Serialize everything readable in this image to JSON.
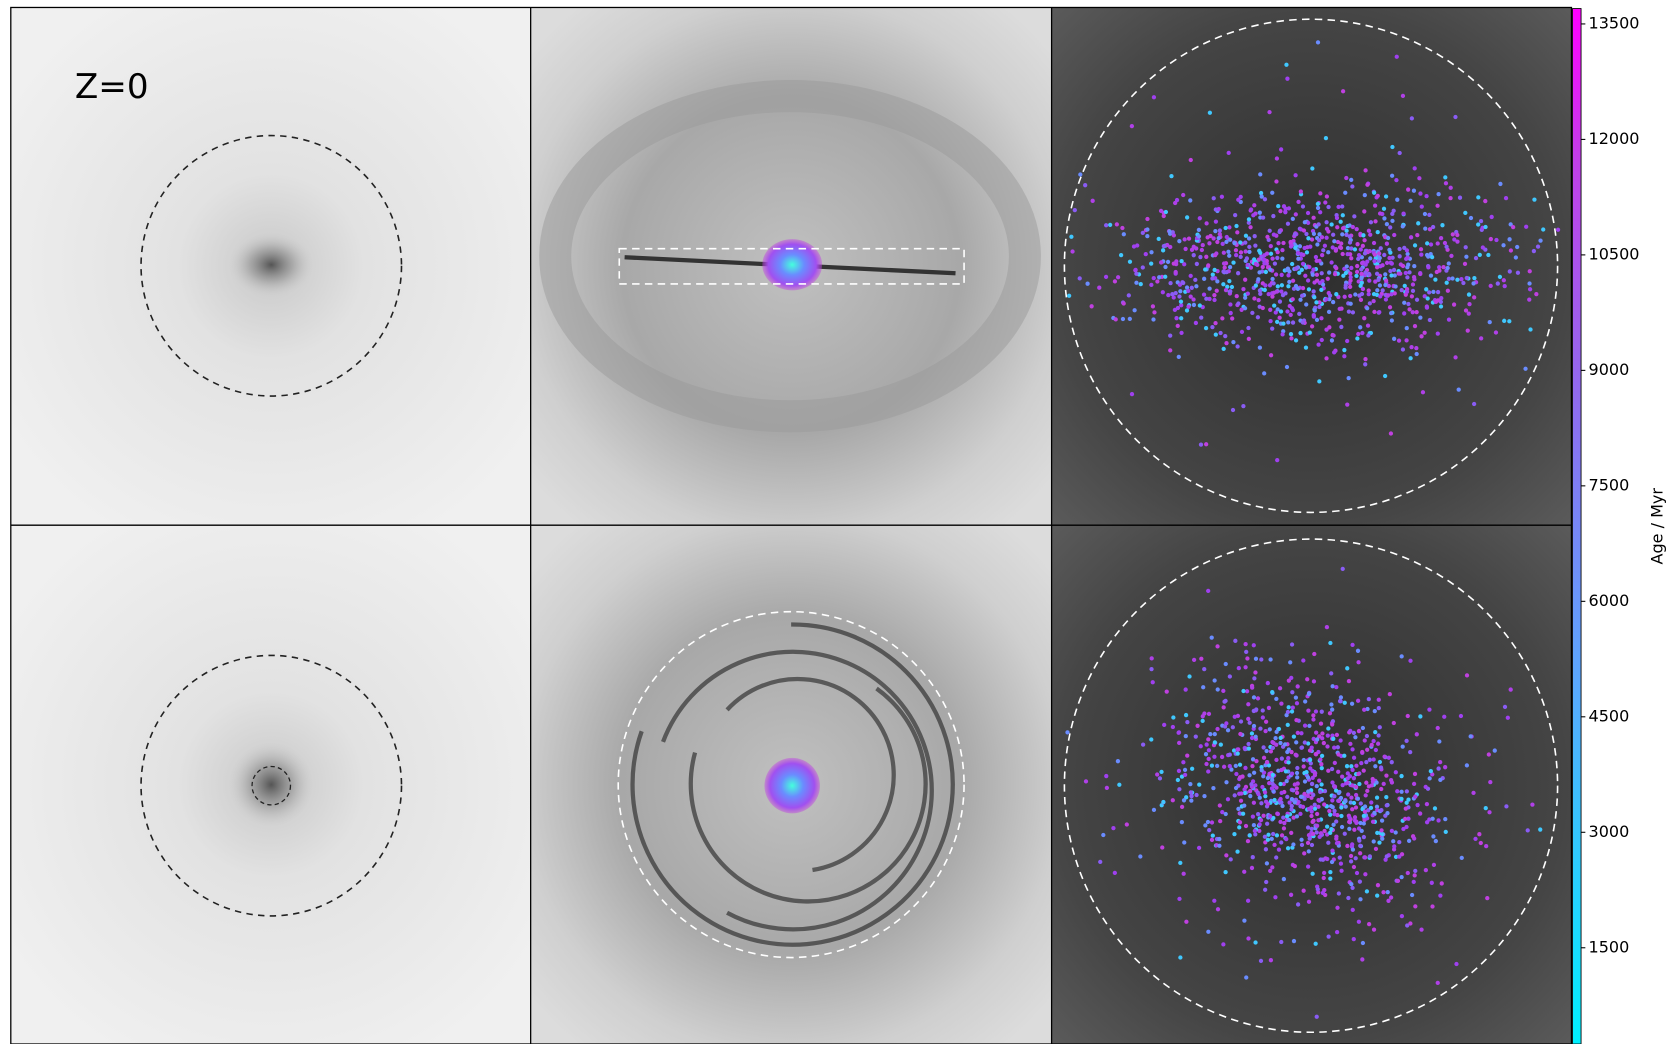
{
  "panel_label": "Z=0",
  "colorbar": {
    "label": "Age / Myr",
    "lim": [
      250,
      13700
    ],
    "ticks": [
      1500,
      3000,
      4500,
      6000,
      7500,
      9000,
      10500,
      12000,
      13500
    ]
  }
}
